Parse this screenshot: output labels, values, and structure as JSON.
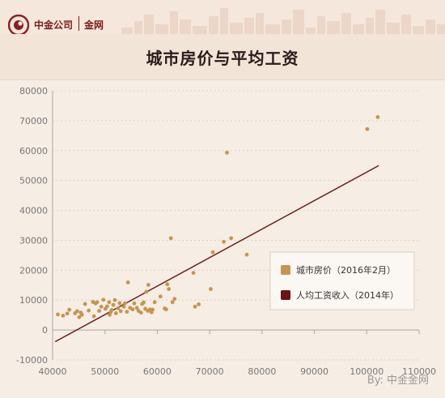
{
  "header": {
    "brand_name": "中金公司",
    "brand_sub": "金网",
    "title": "城市房价与平均工资"
  },
  "source": "By:  中金金网",
  "colors": {
    "scatter": "#c49553",
    "trend": "#6b1414",
    "brand": "#7a1c1c",
    "background": "#f6ede4"
  },
  "chart_data": {
    "type": "scatter",
    "title": "城市房价与平均工资",
    "xlabel": "",
    "ylabel": "",
    "xlim": [
      40000,
      110000
    ],
    "ylim": [
      -10000,
      80000
    ],
    "x_ticks": [
      "40000",
      "50000",
      "60000",
      "70000",
      "80000",
      "90000",
      "100000",
      "110000"
    ],
    "y_ticks": [
      "80000",
      "70000",
      "60000",
      "50000",
      "40000",
      "30000",
      "20000",
      "10000",
      "0",
      "-10000"
    ],
    "legend_position": "right",
    "legend": [
      {
        "label": "城市房价（2016年2月）",
        "kind": "scatter"
      },
      {
        "label": "人均工资收入（2014年）",
        "kind": "trendline"
      }
    ],
    "series": [
      {
        "name": "城市房价（2016年2月）",
        "points": [
          [
            41000,
            5200
          ],
          [
            42000,
            4800
          ],
          [
            42800,
            5500
          ],
          [
            43200,
            6800
          ],
          [
            44300,
            5600
          ],
          [
            44700,
            6300
          ],
          [
            45100,
            4300
          ],
          [
            45400,
            5800
          ],
          [
            45600,
            5100
          ],
          [
            46200,
            8700
          ],
          [
            46900,
            6500
          ],
          [
            47700,
            9400
          ],
          [
            47900,
            4600
          ],
          [
            48200,
            8900
          ],
          [
            48500,
            9300
          ],
          [
            48900,
            6400
          ],
          [
            49300,
            7800
          ],
          [
            49700,
            10100
          ],
          [
            50100,
            7100
          ],
          [
            50400,
            7900
          ],
          [
            50800,
            9300
          ],
          [
            50900,
            5100
          ],
          [
            51100,
            6000
          ],
          [
            51300,
            6700
          ],
          [
            51600,
            8400
          ],
          [
            51900,
            10000
          ],
          [
            52100,
            5600
          ],
          [
            52500,
            7300
          ],
          [
            52800,
            9000
          ],
          [
            53000,
            6300
          ],
          [
            53600,
            7800
          ],
          [
            53800,
            8900
          ],
          [
            54200,
            6100
          ],
          [
            54400,
            15900
          ],
          [
            54800,
            7400
          ],
          [
            55300,
            6900
          ],
          [
            55600,
            8900
          ],
          [
            56100,
            7400
          ],
          [
            56400,
            6400
          ],
          [
            56900,
            5800
          ],
          [
            57100,
            8700
          ],
          [
            57400,
            9200
          ],
          [
            57700,
            7100
          ],
          [
            57900,
            12800
          ],
          [
            58200,
            6400
          ],
          [
            58300,
            15100
          ],
          [
            58600,
            6900
          ],
          [
            58900,
            5900
          ],
          [
            59100,
            6800
          ],
          [
            59500,
            9300
          ],
          [
            60600,
            11200
          ],
          [
            61400,
            7200
          ],
          [
            61700,
            6900
          ],
          [
            61900,
            15300
          ],
          [
            62200,
            13700
          ],
          [
            62600,
            30700
          ],
          [
            62900,
            9300
          ],
          [
            63300,
            10400
          ],
          [
            66900,
            19100
          ],
          [
            67200,
            7800
          ],
          [
            67900,
            8600
          ],
          [
            70200,
            13700
          ],
          [
            70600,
            26000
          ],
          [
            72700,
            29500
          ],
          [
            73300,
            59300
          ],
          [
            74100,
            30700
          ],
          [
            77100,
            25200
          ],
          [
            100100,
            67200
          ],
          [
            102100,
            71200
          ]
        ]
      },
      {
        "name": "人均工资收入（2014年）",
        "trendline": [
          [
            40500,
            -3900
          ],
          [
            102300,
            55000
          ]
        ]
      }
    ]
  }
}
